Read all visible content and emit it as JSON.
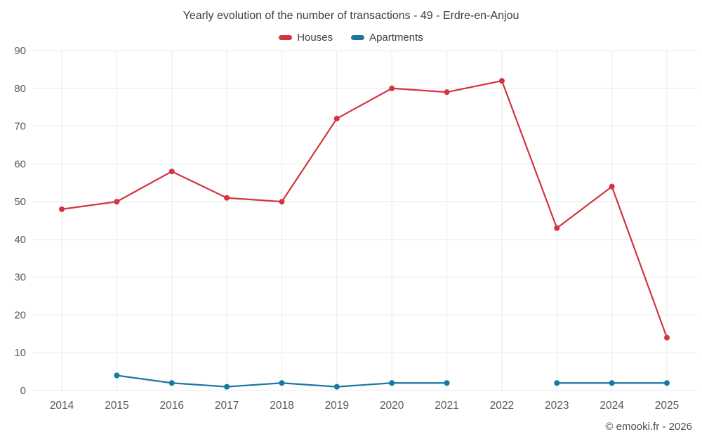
{
  "chart": {
    "title": "Yearly evolution of the number of transactions - 49 - Erdre-en-Anjou",
    "copyright": "© emooki.fr - 2026"
  },
  "chart_data": {
    "type": "line",
    "title": "Yearly evolution of the number of transactions - 49 - Erdre-en-Anjou",
    "categories": [
      "2014",
      "2015",
      "2016",
      "2017",
      "2018",
      "2019",
      "2020",
      "2021",
      "2022",
      "2023",
      "2024",
      "2025"
    ],
    "series": [
      {
        "name": "Houses",
        "color": "#d4333f",
        "values": [
          48,
          50,
          58,
          51,
          50,
          72,
          80,
          79,
          82,
          43,
          54,
          14
        ]
      },
      {
        "name": "Apartments",
        "color": "#1878a2",
        "values": [
          null,
          4,
          2,
          1,
          2,
          1,
          2,
          2,
          null,
          2,
          2,
          2
        ]
      }
    ],
    "xlabel": "",
    "ylabel": "",
    "ylim": [
      0,
      90
    ],
    "ytick_step": 10,
    "grid": true,
    "legend_position": "top",
    "text_color": "#595959",
    "grid_color": "#e8e8e8"
  }
}
